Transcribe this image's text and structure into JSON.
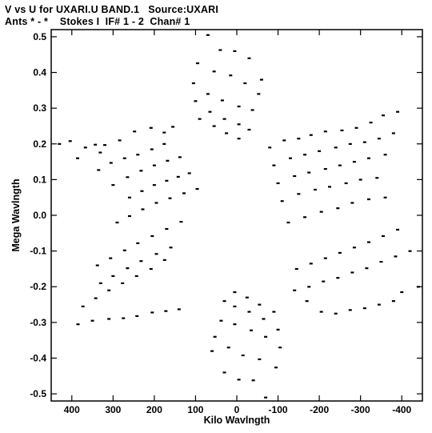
{
  "header": {
    "line1": "V vs U for UXARI.U BAND.1   Source:UXARI",
    "line2": "Ants * - *    Stokes I  IF# 1 - 2  Chan# 1"
  },
  "chart_data": {
    "type": "scatter",
    "title": "V vs U for UXARI.U BAND.1   Source:UXARI",
    "subtitle": "Ants * - *    Stokes I  IF# 1 - 2  Chan# 1",
    "xlabel": "Kilo Wavlngth",
    "ylabel": "Mega Wavlngth",
    "xlim": [
      450,
      -450
    ],
    "ylim": [
      -0.52,
      0.52
    ],
    "x_ticks": [
      400,
      300,
      200,
      100,
      0,
      -100,
      -200,
      -300,
      -400
    ],
    "x_tick_labels": [
      "400",
      "300",
      "200",
      "100",
      "0",
      "-100",
      "-200",
      "-300",
      "-400"
    ],
    "y_ticks": [
      0.5,
      0.4,
      0.3,
      0.2,
      0.1,
      0.0,
      -0.1,
      -0.2,
      -0.3,
      -0.4,
      -0.5
    ],
    "y_tick_labels": [
      "0.5",
      "0.4",
      "0.3",
      "0.2",
      "0.1",
      "0.0",
      "-0.1",
      "-0.2",
      "-0.3",
      "-0.4",
      "-0.5"
    ],
    "grid": false,
    "series": [
      {
        "values_note": "",
        "points": [
          [
            430,
            0.2
          ],
          [
            404,
            0.208
          ],
          [
            386,
            0.16
          ],
          [
            367,
            0.19
          ],
          [
            343,
            0.198
          ],
          [
            331,
            0.176
          ],
          [
            320,
            0.197
          ],
          [
            284,
            0.21
          ],
          [
            248,
            0.235
          ],
          [
            208,
            0.245
          ],
          [
            176,
            0.232
          ],
          [
            155,
            0.248
          ],
          [
            335,
            0.127
          ],
          [
            305,
            0.147
          ],
          [
            272,
            0.16
          ],
          [
            240,
            0.17
          ],
          [
            206,
            0.185
          ],
          [
            176,
            0.2
          ],
          [
            300,
            0.085
          ],
          [
            265,
            0.107
          ],
          [
            232,
            0.125
          ],
          [
            200,
            0.14
          ],
          [
            168,
            0.153
          ],
          [
            138,
            0.163
          ],
          [
            260,
            0.05
          ],
          [
            230,
            0.068
          ],
          [
            200,
            0.085
          ],
          [
            170,
            0.097
          ],
          [
            142,
            0.108
          ],
          [
            115,
            0.118
          ],
          [
            290,
            -0.02
          ],
          [
            260,
            -0.002
          ],
          [
            228,
            0.017
          ],
          [
            195,
            0.035
          ],
          [
            162,
            0.048
          ],
          [
            128,
            0.062
          ],
          [
            96,
            0.074
          ],
          [
            338,
            -0.14
          ],
          [
            306,
            -0.12
          ],
          [
            272,
            -0.098
          ],
          [
            240,
            -0.078
          ],
          [
            205,
            -0.058
          ],
          [
            170,
            -0.038
          ],
          [
            135,
            -0.018
          ],
          [
            373,
            -0.255
          ],
          [
            342,
            -0.232
          ],
          [
            310,
            -0.21
          ],
          [
            277,
            -0.19
          ],
          [
            243,
            -0.17
          ],
          [
            208,
            -0.15
          ],
          [
            175,
            -0.125
          ],
          [
            385,
            -0.305
          ],
          [
            350,
            -0.295
          ],
          [
            310,
            -0.29
          ],
          [
            275,
            -0.288
          ],
          [
            242,
            -0.282
          ],
          [
            205,
            -0.272
          ],
          [
            172,
            -0.268
          ],
          [
            140,
            -0.263
          ],
          [
            330,
            -0.19
          ],
          [
            300,
            -0.17
          ],
          [
            265,
            -0.148
          ],
          [
            232,
            -0.128
          ],
          [
            195,
            -0.108
          ],
          [
            160,
            -0.09
          ],
          [
            70,
            0.505
          ],
          [
            40,
            0.463
          ],
          [
            5,
            0.46
          ],
          [
            -30,
            0.44
          ],
          [
            -60,
            0.38
          ],
          [
            95,
            0.426
          ],
          [
            55,
            0.403
          ],
          [
            15,
            0.392
          ],
          [
            -20,
            0.37
          ],
          [
            -53,
            0.34
          ],
          [
            105,
            0.37
          ],
          [
            70,
            0.34
          ],
          [
            35,
            0.322
          ],
          [
            -5,
            0.305
          ],
          [
            -38,
            0.295
          ],
          [
            100,
            0.32
          ],
          [
            65,
            0.29
          ],
          [
            30,
            0.27
          ],
          [
            -5,
            0.255
          ],
          [
            -30,
            0.24
          ],
          [
            90,
            0.27
          ],
          [
            55,
            0.25
          ],
          [
            25,
            0.23
          ],
          [
            -5,
            0.215
          ],
          [
            -80,
            0.19
          ],
          [
            -115,
            0.21
          ],
          [
            -150,
            0.215
          ],
          [
            -180,
            0.225
          ],
          [
            -215,
            0.235
          ],
          [
            -255,
            0.238
          ],
          [
            -290,
            0.245
          ],
          [
            -325,
            0.26
          ],
          [
            -355,
            0.28
          ],
          [
            -390,
            0.29
          ],
          [
            -90,
            0.14
          ],
          [
            -130,
            0.16
          ],
          [
            -165,
            0.17
          ],
          [
            -200,
            0.18
          ],
          [
            -240,
            0.19
          ],
          [
            -275,
            0.2
          ],
          [
            -310,
            0.205
          ],
          [
            -345,
            0.215
          ],
          [
            -380,
            0.23
          ],
          [
            -100,
            0.09
          ],
          [
            -140,
            0.11
          ],
          [
            -175,
            0.12
          ],
          [
            -215,
            0.13
          ],
          [
            -250,
            0.14
          ],
          [
            -285,
            0.15
          ],
          [
            -320,
            0.16
          ],
          [
            -360,
            0.17
          ],
          [
            -110,
            0.04
          ],
          [
            -150,
            0.06
          ],
          [
            -190,
            0.072
          ],
          [
            -225,
            0.08
          ],
          [
            -265,
            0.09
          ],
          [
            -300,
            0.1
          ],
          [
            -340,
            0.105
          ],
          [
            -125,
            -0.02
          ],
          [
            -165,
            -0.005
          ],
          [
            -205,
            0.01
          ],
          [
            -245,
            0.02
          ],
          [
            -280,
            0.035
          ],
          [
            -320,
            0.045
          ],
          [
            -360,
            0.05
          ],
          [
            -440,
            -0.2
          ],
          [
            -400,
            -0.215
          ],
          [
            -380,
            -0.24
          ],
          [
            -345,
            -0.25
          ],
          [
            -310,
            -0.26
          ],
          [
            -275,
            -0.265
          ],
          [
            -240,
            -0.275
          ],
          [
            -205,
            -0.27
          ],
          [
            -170,
            -0.24
          ],
          [
            -420,
            -0.1
          ],
          [
            -385,
            -0.115
          ],
          [
            -350,
            -0.13
          ],
          [
            -315,
            -0.148
          ],
          [
            -280,
            -0.16
          ],
          [
            -245,
            -0.175
          ],
          [
            -210,
            -0.185
          ],
          [
            -175,
            -0.2
          ],
          [
            -140,
            -0.21
          ],
          [
            -390,
            -0.04
          ],
          [
            -355,
            -0.058
          ],
          [
            -320,
            -0.075
          ],
          [
            -285,
            -0.09
          ],
          [
            -250,
            -0.105
          ],
          [
            -215,
            -0.12
          ],
          [
            -180,
            -0.135
          ],
          [
            -145,
            -0.15
          ],
          [
            -70,
            -0.51
          ],
          [
            -40,
            -0.462
          ],
          [
            -5,
            -0.46
          ],
          [
            30,
            -0.44
          ],
          [
            60,
            -0.38
          ],
          [
            -95,
            -0.426
          ],
          [
            -55,
            -0.403
          ],
          [
            -15,
            -0.392
          ],
          [
            20,
            -0.37
          ],
          [
            53,
            -0.34
          ],
          [
            -105,
            -0.37
          ],
          [
            -70,
            -0.34
          ],
          [
            -35,
            -0.322
          ],
          [
            5,
            -0.305
          ],
          [
            38,
            -0.295
          ],
          [
            -100,
            -0.32
          ],
          [
            -65,
            -0.29
          ],
          [
            -30,
            -0.27
          ],
          [
            5,
            -0.255
          ],
          [
            30,
            -0.24
          ],
          [
            -90,
            -0.27
          ],
          [
            -55,
            -0.25
          ],
          [
            -25,
            -0.23
          ],
          [
            5,
            -0.215
          ]
        ]
      }
    ],
    "marker_color": "#000000"
  }
}
